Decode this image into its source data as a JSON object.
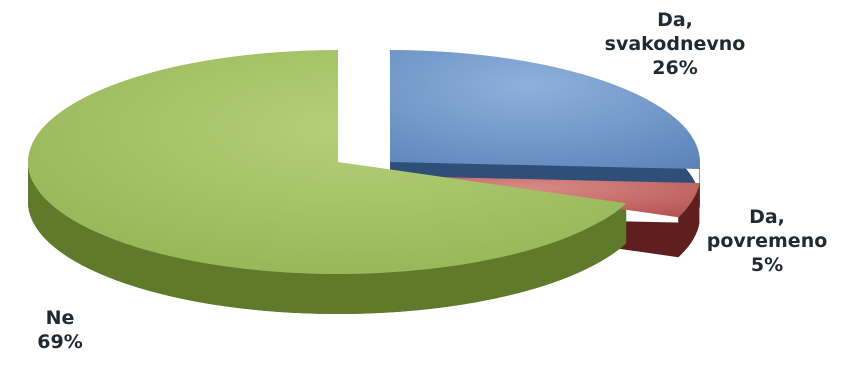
{
  "chart_data": {
    "type": "pie",
    "style": "3d-exploded",
    "slices": [
      {
        "label_line1": "Da,",
        "label_line2": "svakodnevno",
        "value": 26,
        "value_label": "26%",
        "color": "#6b93c8",
        "side_color": "#2f4f78"
      },
      {
        "label_line1": "Da,",
        "label_line2": "povremeno",
        "value": 5,
        "value_label": "5%",
        "color": "#c0605d",
        "side_color": "#5e1f1e"
      },
      {
        "label_line1": "Ne",
        "label_line2": "",
        "value": 69,
        "value_label": "69%",
        "color": "#9cbd5e",
        "side_color": "#5e7a2a"
      }
    ]
  }
}
